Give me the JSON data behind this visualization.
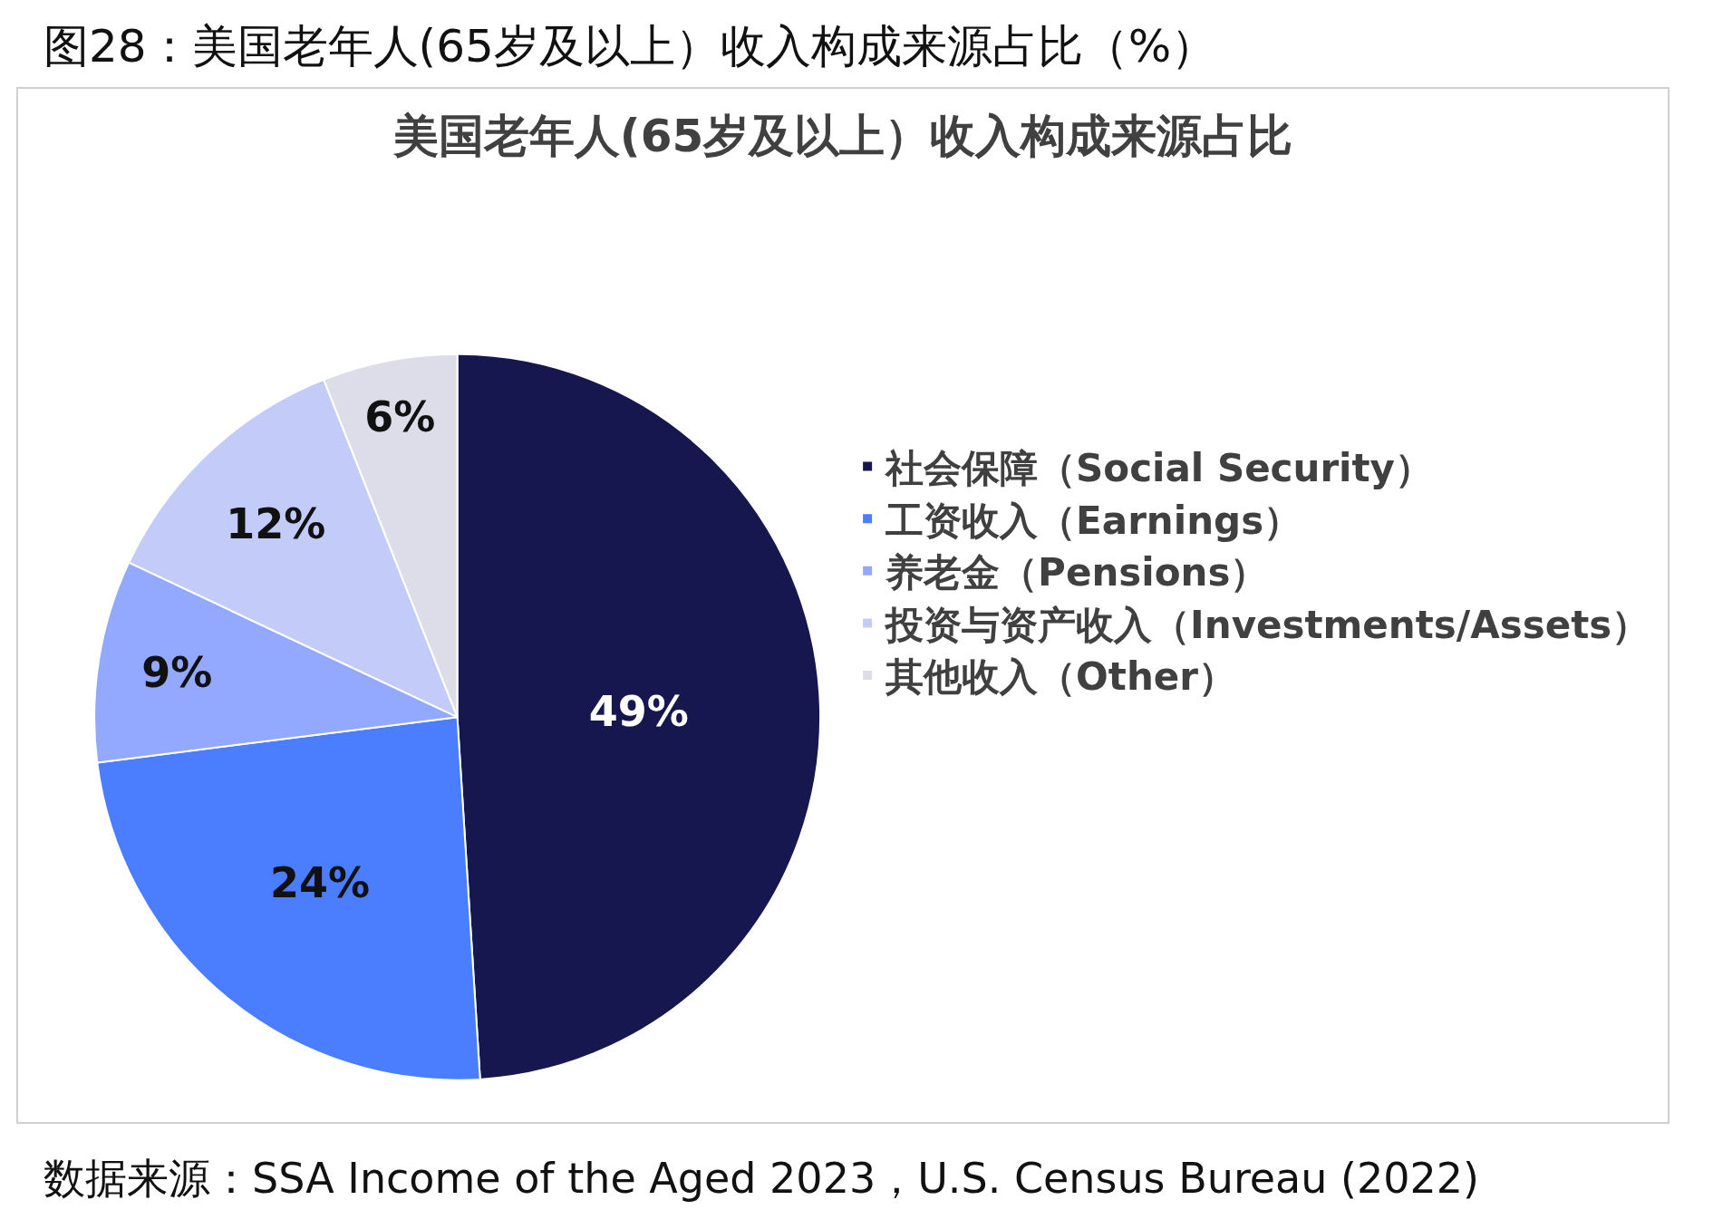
{
  "chart_data": {
    "type": "pie",
    "title": "图28：美国老年人(65岁及以上）收入构成来源占比（%）",
    "subtitle": "美国老年人(65岁及以上）收入构成来源占比",
    "categories": [
      "社会保障（Social Security）",
      "工资收入（Earnings）",
      "养老金（Pensions）",
      "投资与资产收入（Investments/Assets）",
      "其他收入（Other）"
    ],
    "values": [
      49,
      24,
      9,
      12,
      6
    ],
    "colors": [
      "#16174f",
      "#4a7dff",
      "#93a8ff",
      "#c3cbf8",
      "#dcdde8"
    ],
    "value_labels": [
      "49%",
      "24%",
      "9%",
      "12%",
      "6%"
    ],
    "legend": "right",
    "annotations": [
      "数据来源：SSA Income of the Aged 2023，U.S. Census Bureau (2022)"
    ]
  }
}
